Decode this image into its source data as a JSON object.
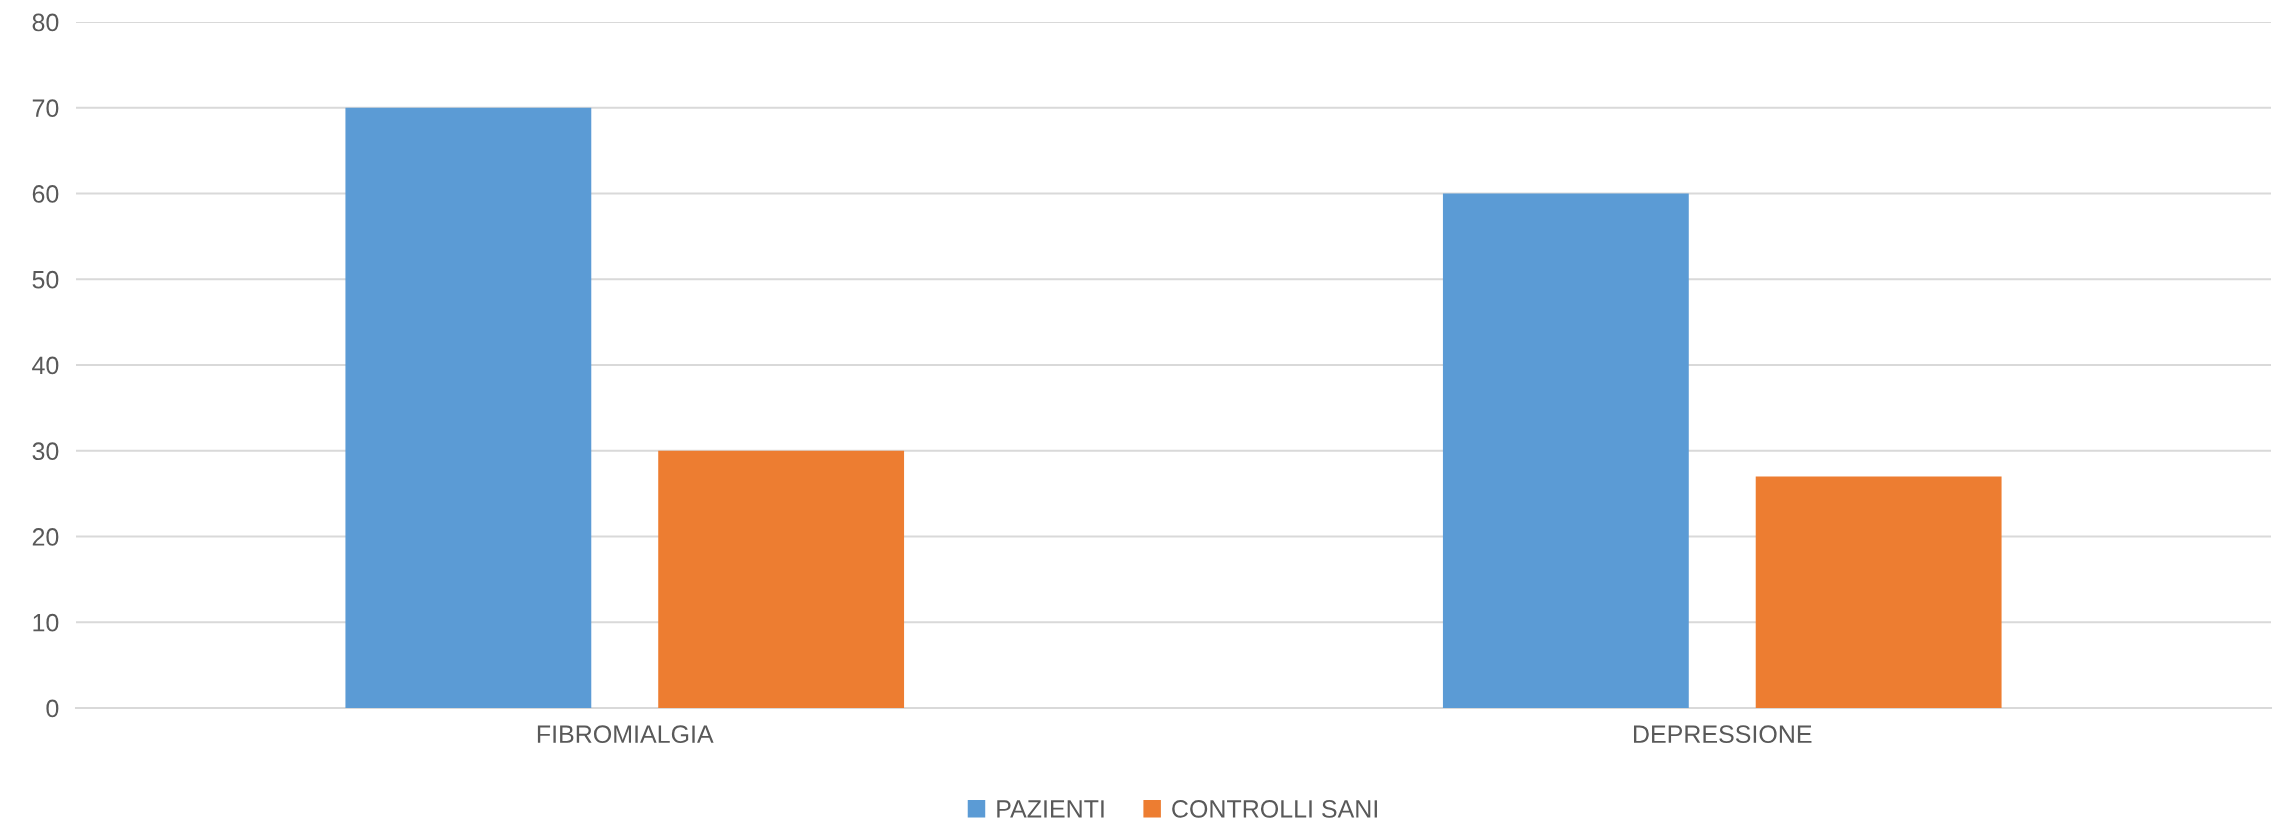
{
  "chart_data": {
    "type": "bar",
    "categories": [
      "FIBROMIALGIA",
      "DEPRESSIONE"
    ],
    "series": [
      {
        "name": "PAZIENTI",
        "color": "#5b9bd5",
        "values": [
          70,
          60
        ]
      },
      {
        "name": "CONTROLLI SANI",
        "color": "#ed7d31",
        "values": [
          30,
          27
        ]
      }
    ],
    "ylim": [
      0,
      80
    ],
    "yticks": [
      0,
      10,
      20,
      30,
      40,
      50,
      60,
      70,
      80
    ],
    "grid": "y",
    "legend": "bottom"
  }
}
